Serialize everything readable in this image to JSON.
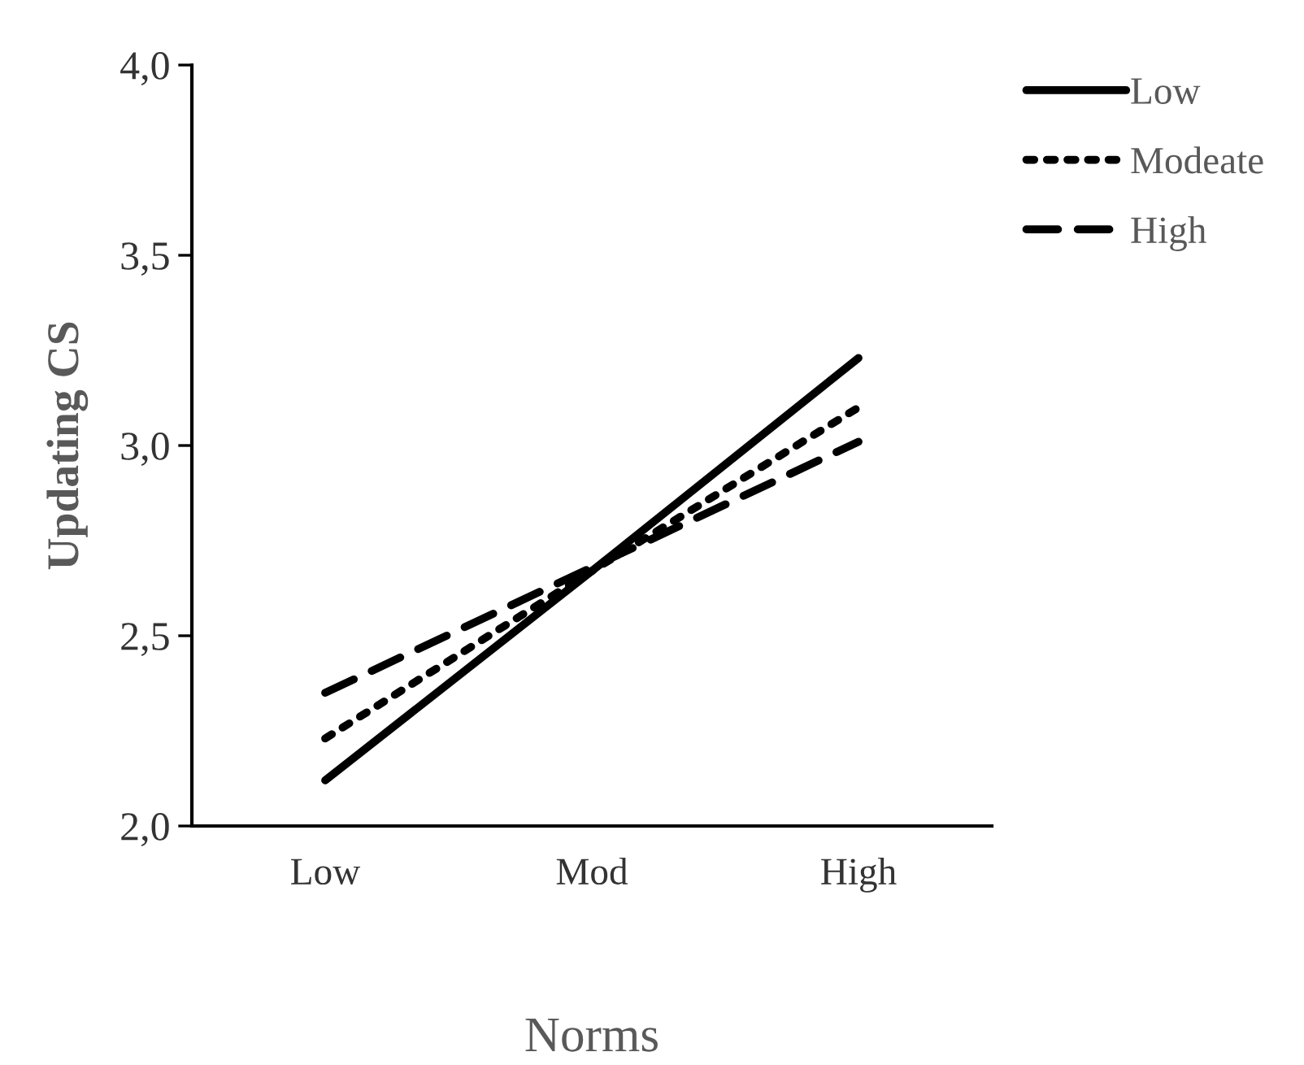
{
  "chart_data": {
    "type": "line",
    "xlabel": "Norms",
    "ylabel": "Updating CS",
    "categories": [
      "Low",
      "Mod",
      "High"
    ],
    "series": [
      {
        "name": "Low",
        "color": "#000000",
        "line_style": "solid",
        "values": [
          2.12,
          2.67,
          3.23
        ]
      },
      {
        "name": "Modeate",
        "color": "#000000",
        "line_style": "dotted",
        "values": [
          2.23,
          2.67,
          3.1
        ]
      },
      {
        "name": "High",
        "color": "#000000",
        "line_style": "dashed",
        "values": [
          2.35,
          2.68,
          3.01
        ]
      }
    ],
    "ylim": [
      2.0,
      4.0
    ],
    "yticks": [
      {
        "value": 2.0,
        "label": "2,0"
      },
      {
        "value": 2.5,
        "label": "2,5"
      },
      {
        "value": 3.0,
        "label": "3,0"
      },
      {
        "value": 3.5,
        "label": "3,5"
      },
      {
        "value": 4.0,
        "label": "4,0"
      }
    ],
    "grid": false,
    "legend": "top right",
    "marker": "none"
  }
}
